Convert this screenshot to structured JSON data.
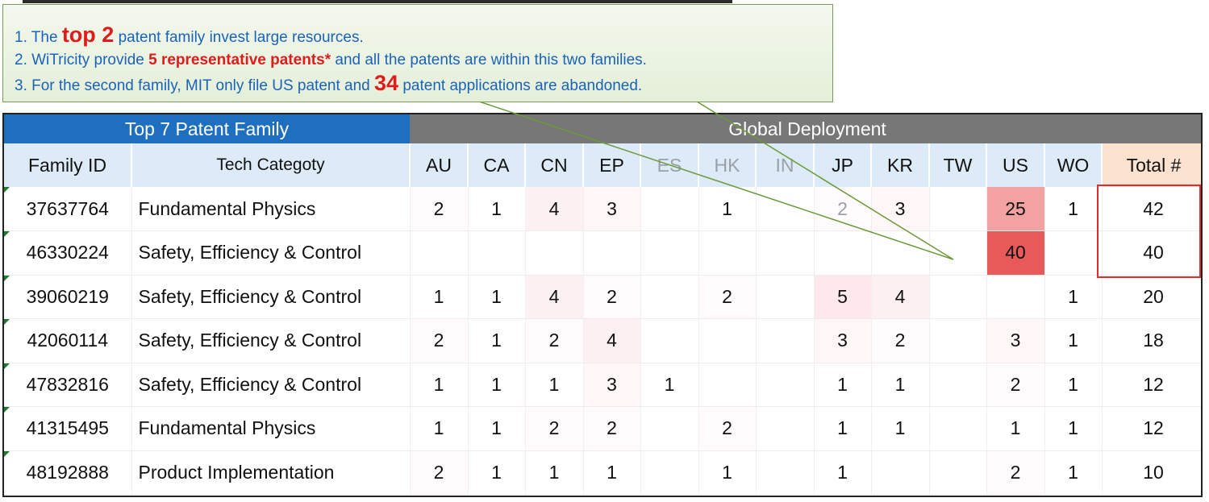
{
  "callout": {
    "line1": {
      "prefix": "1. The ",
      "highlight": "top 2",
      "suffix": " patent family invest large resources."
    },
    "line2": {
      "prefix": "2. WiTricity provide ",
      "highlight": "5 representative patents*",
      "suffix": " and all the patents are within this two families."
    },
    "line3": {
      "prefix": "3. For the second family, MIT only file US patent and ",
      "highlight": "34",
      "suffix": " patent applications are abandoned."
    }
  },
  "table": {
    "group_headers": {
      "family": "Top 7 Patent Family",
      "global": "Global Deployment"
    },
    "columns": {
      "family_id": "Family ID",
      "tech": "Tech Categoty",
      "countries": [
        "AU",
        "CA",
        "CN",
        "EP",
        "ES",
        "HK",
        "IN",
        "JP",
        "KR",
        "TW",
        "US",
        "WO"
      ],
      "total": "Total #"
    },
    "rows": [
      {
        "id": "37637764",
        "tech": "Fundamental Physics",
        "cells": [
          "2",
          "1",
          "4",
          "3",
          "",
          "1",
          "",
          "2",
          "3",
          "",
          "25",
          "1"
        ],
        "total": "42"
      },
      {
        "id": "46330224",
        "tech": "Safety, Efficiency & Control",
        "cells": [
          "",
          "",
          "",
          "",
          "",
          "",
          "",
          "",
          "",
          "",
          "40",
          ""
        ],
        "total": "40"
      },
      {
        "id": "39060219",
        "tech": "Safety, Efficiency & Control",
        "cells": [
          "1",
          "1",
          "4",
          "2",
          "",
          "2",
          "",
          "5",
          "4",
          "",
          "",
          "1"
        ],
        "total": "20"
      },
      {
        "id": "42060114",
        "tech": "Safety, Efficiency & Control",
        "cells": [
          "2",
          "1",
          "2",
          "4",
          "",
          "",
          "",
          "3",
          "2",
          "",
          "3",
          "1"
        ],
        "total": "18"
      },
      {
        "id": "47832816",
        "tech": "Safety, Efficiency & Control",
        "cells": [
          "1",
          "1",
          "1",
          "3",
          "1",
          "",
          "",
          "1",
          "1",
          "",
          "2",
          "1"
        ],
        "total": "12"
      },
      {
        "id": "41315495",
        "tech": "Fundamental Physics",
        "cells": [
          "1",
          "1",
          "2",
          "2",
          "",
          "2",
          "",
          "1",
          "1",
          "",
          "1",
          "1"
        ],
        "total": "12"
      },
      {
        "id": "48192888",
        "tech": "Product Implementation",
        "cells": [
          "2",
          "1",
          "1",
          "1",
          "",
          "1",
          "",
          "1",
          "",
          "",
          "2",
          "1"
        ],
        "total": "10"
      }
    ]
  },
  "colors": {
    "family_header": "#1f6fc0",
    "global_header": "#777777",
    "subheader": "#dcebf7",
    "total_header": "#fbe3d0",
    "highlight_box": "#e32b2b",
    "callout_text": "#1a63b8",
    "callout_emphasis": "#e01b1b",
    "heat_max": "#e85a5a"
  }
}
